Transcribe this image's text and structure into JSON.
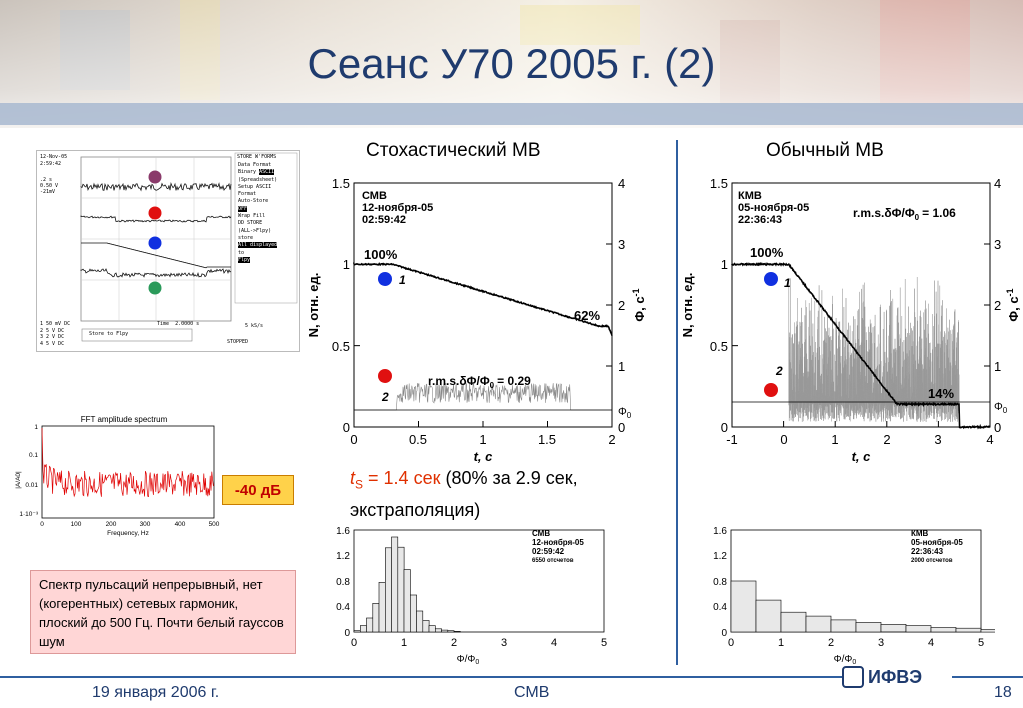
{
  "title": "Сеанс У70 2005 г. (2)",
  "left_panel_title": "Стохастический МВ",
  "right_panel_title": "Обычный МВ",
  "osc": {
    "date": "12-Nov-05",
    "time": "2:59:42",
    "ch1": ".2 s\n0.50 V\n-21mV",
    "store_hdr": "STORE W'FORMS",
    "menu": [
      "Data Format",
      "Binary",
      "ASCII",
      "(Spreadsheet)",
      "Setup ASCII",
      "Format",
      "Auto-Store",
      "OFF",
      "Wrap",
      "Fill",
      "DD STORE",
      "(ALL->Flpy)",
      "store",
      "All displayed",
      "to",
      "Flpy"
    ],
    "time_label": "Time",
    "time_value": "2.0000 s",
    "rate": "5 kS/s",
    "stopped": "STOPPED",
    "store_to_flpy": "Store to Flpy",
    "scales": [
      "1 50 mV  DC",
      "2  5  V  DC",
      "3  2  V  DC",
      "4  5  V  DC"
    ]
  },
  "fft": {
    "title": "FFT amplitude spectrum",
    "ylabel": "|A/A0|",
    "xlabel": "Frequency, Hz",
    "yticks": [
      "1",
      "0.1",
      "0.01",
      "1·10⁻³"
    ],
    "xticks": [
      "0",
      "100",
      "200",
      "300",
      "400",
      "500"
    ]
  },
  "db_label": "-40 дБ",
  "note": "Спектр пульсаций непрерывный, нет (когерентных) сетевых гармоник, плоский до 500 Гц. Почти белый гауссов шум",
  "ts_parts": {
    "ts": "t",
    "sub": "S",
    "eq": " = 1.4 сек",
    "rest": " (80% за 2.9 сек, экстраполяция)"
  },
  "left_plot": {
    "legend": [
      "СМВ",
      "12-ноября-05",
      "02:59:42"
    ],
    "label_100": "100%",
    "label_end": "62%",
    "rms": "r.m.s.δΦ/Φ",
    "rms_value": "= 0.29",
    "curve1": "1",
    "curve2": "2",
    "ylabel": "N, отн. ед.",
    "y2label": "Φ, с",
    "xlabel": "t, с",
    "phi0": "Φ",
    "yticks": [
      "1.5",
      "1",
      "0.5",
      "0"
    ],
    "y2ticks": [
      "4",
      "3",
      "2",
      "1",
      "0"
    ],
    "xticks": [
      "0",
      "0.5",
      "1",
      "1.5",
      "2"
    ]
  },
  "right_plot": {
    "legend": [
      "КМВ",
      "05-ноября-05",
      "22:36:43"
    ],
    "rms": "r.m.s.δΦ/Φ",
    "rms_value": "= 1.06",
    "label_100": "100%",
    "label_end": "14%",
    "curve1": "1",
    "curve2": "2",
    "ylabel": "N, отн. ед.",
    "y2label": "Φ, с",
    "xlabel": "t, с",
    "phi0": "Φ",
    "yticks": [
      "1.5",
      "1",
      "0.5",
      "0"
    ],
    "y2ticks": [
      "4",
      "3",
      "2",
      "1",
      "0"
    ],
    "xticks": [
      "-1",
      "0",
      "1",
      "2",
      "3",
      "4"
    ]
  },
  "hist_left": {
    "legend": [
      "СМВ",
      "12-ноября-05",
      "02:59:42",
      "6550 отсчетов"
    ],
    "xlabel": "Φ/Φ",
    "yticks": [
      "1.6",
      "1.2",
      "0.8",
      "0.4",
      "0"
    ],
    "xticks": [
      "0",
      "1",
      "2",
      "3",
      "4",
      "5"
    ],
    "values": [
      0.02,
      0.1,
      0.22,
      0.45,
      0.78,
      1.32,
      1.49,
      1.33,
      0.98,
      0.58,
      0.33,
      0.18,
      0.1,
      0.05,
      0.03,
      0.02,
      0.01
    ]
  },
  "hist_right": {
    "legend": [
      "КМВ",
      "05-ноября-05",
      "22:36:43",
      "2000 отсчетов"
    ],
    "xlabel": "Φ/Φ",
    "yticks": [
      "1.6",
      "1.2",
      "0.8",
      "0.4",
      "0"
    ],
    "xticks": [
      "0",
      "1",
      "2",
      "3",
      "4",
      "5"
    ],
    "values": [
      0.8,
      0.5,
      0.31,
      0.25,
      0.19,
      0.15,
      0.12,
      0.1,
      0.07,
      0.06,
      0.04
    ]
  },
  "footer": {
    "date": "19 января 2006 г.",
    "center": "СМВ",
    "page": "18",
    "logo": "ИФВЭ"
  },
  "colors": {
    "title": "#1f3b6e",
    "accent_red": "#e03000",
    "dot_blue": "#1030e0",
    "dot_red": "#e01010",
    "dot_purple": "#8a3a6a",
    "dot_green": "#2a9a5a"
  }
}
